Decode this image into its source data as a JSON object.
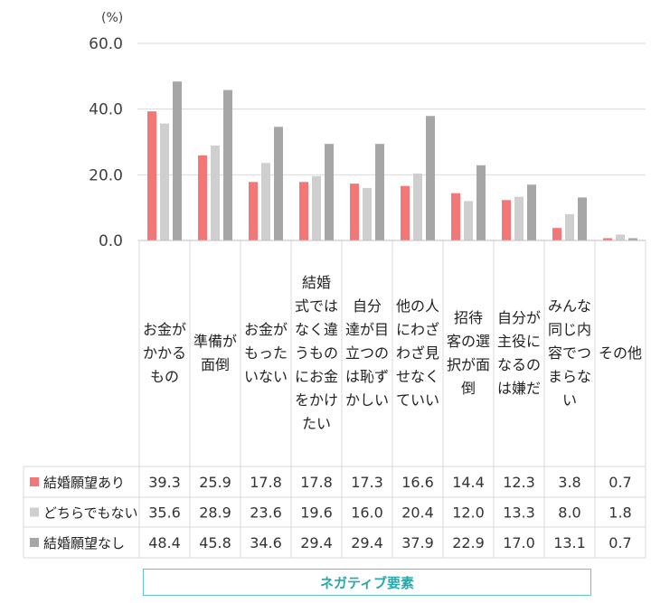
{
  "unit_label": "(%)",
  "footer_label": "ネガティブ要素",
  "colors": {
    "series1": "#f47777",
    "series2": "#cfcfcf",
    "series3": "#a6a6a6",
    "grid": "#d9d9d9",
    "accent": "#5fc5c8"
  },
  "chart_data": {
    "type": "bar",
    "title": "",
    "ylabel": "(%)",
    "ylim": [
      0,
      60
    ],
    "yticks": [
      "0.0",
      "20.0",
      "40.0",
      "60.0"
    ],
    "ytick_values": [
      0,
      20,
      40,
      60
    ],
    "categories": [
      [
        "お金が",
        "かかる",
        "もの"
      ],
      [
        "準備が",
        "面倒"
      ],
      [
        "お金が",
        "もった",
        "いない"
      ],
      [
        "結婚",
        "式では",
        "なく違",
        "うもの",
        "にお金",
        "をかけ",
        "たい"
      ],
      [
        "自分",
        "達が目",
        "立つの",
        "は恥ず",
        "かしい"
      ],
      [
        "他の人",
        "にわざ",
        "わざ見",
        "せなく",
        "ていい"
      ],
      [
        "招待",
        "客の選",
        "択が面",
        "倒"
      ],
      [
        "自分が",
        "主役に",
        "なるの",
        "は嫌だ"
      ],
      [
        "みんな",
        "同じ内",
        "容でつ",
        "まらな",
        "い"
      ],
      [
        "その他"
      ]
    ],
    "series": [
      {
        "name": "結婚願望あり",
        "values": [
          39.3,
          25.9,
          17.8,
          17.8,
          17.3,
          16.6,
          14.4,
          12.3,
          3.8,
          0.7
        ],
        "labels": [
          "39.3",
          "25.9",
          "17.8",
          "17.8",
          "17.3",
          "16.6",
          "14.4",
          "12.3",
          "3.8",
          "0.7"
        ]
      },
      {
        "name": "どちらでもない",
        "values": [
          35.6,
          28.9,
          23.6,
          19.6,
          16.0,
          20.4,
          12.0,
          13.3,
          8.0,
          1.8
        ],
        "labels": [
          "35.6",
          "28.9",
          "23.6",
          "19.6",
          "16.0",
          "20.4",
          "12.0",
          "13.3",
          "8.0",
          "1.8"
        ]
      },
      {
        "name": "結婚願望なし",
        "values": [
          48.4,
          45.8,
          34.6,
          29.4,
          29.4,
          37.9,
          22.9,
          17.0,
          13.1,
          0.7
        ],
        "labels": [
          "48.4",
          "45.8",
          "34.6",
          "29.4",
          "29.4",
          "37.9",
          "22.9",
          "17.0",
          "13.1",
          "0.7"
        ]
      }
    ]
  }
}
